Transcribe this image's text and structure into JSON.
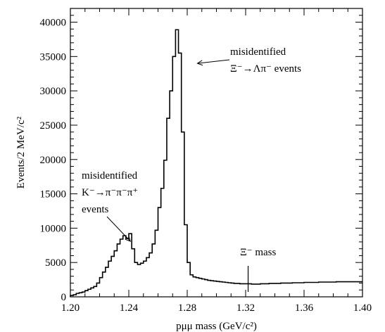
{
  "chart_data": {
    "type": "histogram",
    "xlabel": "pμμ mass (GeV/c²)",
    "ylabel": "Events/2 MeV/c²",
    "xlim": [
      1.2,
      1.4
    ],
    "ylim": [
      0,
      42000
    ],
    "x_ticks": [
      "1.20",
      "1.24",
      "1.28",
      "1.32",
      "1.36",
      "1.40"
    ],
    "y_ticks": [
      "0",
      "5000",
      "10000",
      "15000",
      "20000",
      "25000",
      "30000",
      "35000",
      "40000"
    ],
    "bin_width": 0.002,
    "bin_edges_start": 1.2,
    "values": [
      200,
      300,
      500,
      600,
      700,
      900,
      1100,
      1300,
      1500,
      2000,
      2800,
      3600,
      4300,
      5200,
      5900,
      6700,
      7700,
      8400,
      8900,
      8500,
      9200,
      7000,
      5000,
      4700,
      4900,
      5200,
      5700,
      6400,
      7700,
      9700,
      13000,
      15800,
      19900,
      26000,
      30000,
      35000,
      38900,
      35500,
      24000,
      10500,
      5000,
      3200,
      2900,
      2800,
      2700,
      2600,
      2500,
      2400,
      2350,
      2300,
      2250,
      2200,
      2150,
      2100,
      2050,
      2000,
      1950,
      1950,
      1900,
      1900,
      1900,
      1900,
      1850,
      1850,
      1850,
      1900,
      1900,
      1900,
      1950,
      1950,
      1950,
      1950,
      2000,
      2000,
      2000,
      2000,
      2050,
      2050,
      2050,
      2050,
      2100,
      2100,
      2100,
      2100,
      2100,
      2150,
      2150,
      2150,
      2150,
      2150,
      2150,
      2200,
      2200,
      2200,
      2200,
      2200,
      2200,
      2200,
      2200,
      2200
    ],
    "annotations": [
      {
        "id": "xi",
        "lines": [
          "misidentified",
          "Ξ⁻→Λπ⁻ events"
        ],
        "points_to": {
          "x": 1.286,
          "y": 34000
        }
      },
      {
        "id": "k",
        "lines": [
          "misidentified",
          "K⁻→π⁻π⁻π⁺",
          "events"
        ],
        "points_to": {
          "x": 1.243,
          "y": 8500
        }
      },
      {
        "id": "ximass",
        "lines": [
          "Ξ⁻ mass"
        ],
        "marker_x": 1.3217
      }
    ]
  }
}
